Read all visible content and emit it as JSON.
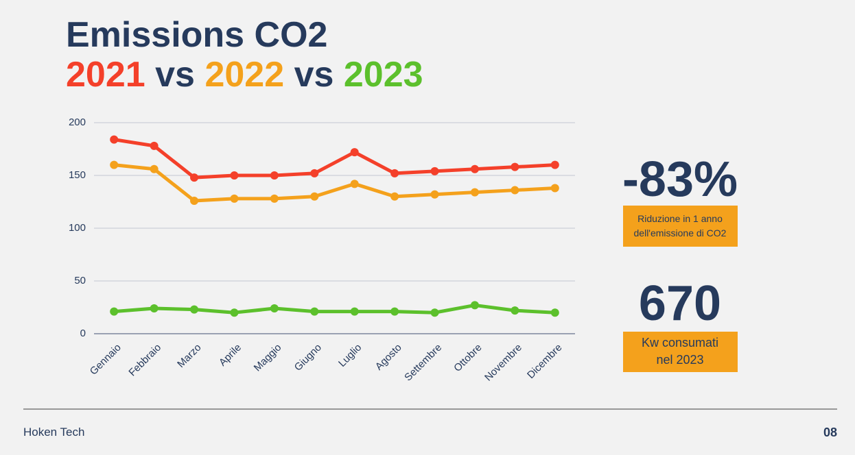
{
  "title": "Emissions CO2",
  "title_separator": "vs",
  "chart_data": {
    "type": "line",
    "categories": [
      "Gennaio",
      "Febbraio",
      "Marzo",
      "Aprile",
      "Maggio",
      "Giugno",
      "Luglio",
      "Agosto",
      "Settembre",
      "Ottobre",
      "Novembre",
      "Dicembre"
    ],
    "series": [
      {
        "name": "2021",
        "color": "#f4402a",
        "values": [
          184,
          178,
          148,
          150,
          150,
          152,
          172,
          152,
          154,
          156,
          158,
          160
        ]
      },
      {
        "name": "2022",
        "color": "#f4a11c",
        "values": [
          160,
          156,
          126,
          128,
          128,
          130,
          142,
          130,
          132,
          134,
          136,
          138
        ]
      },
      {
        "name": "2023",
        "color": "#5cc02c",
        "values": [
          21,
          24,
          23,
          20,
          24,
          21,
          21,
          21,
          20,
          27,
          22,
          20
        ]
      }
    ],
    "ylim": [
      0,
      200
    ],
    "yticks": [
      0,
      50,
      100,
      150,
      200
    ],
    "grid": true
  },
  "stats": [
    {
      "value": "-83%",
      "label": [
        "Riduzione in 1 anno",
        "dell'emissione di CO2"
      ]
    },
    {
      "value": "670",
      "label": [
        "Kw consumati",
        "nel 2023"
      ]
    }
  ],
  "footer": {
    "company": "Hoken Tech",
    "page": "08"
  }
}
